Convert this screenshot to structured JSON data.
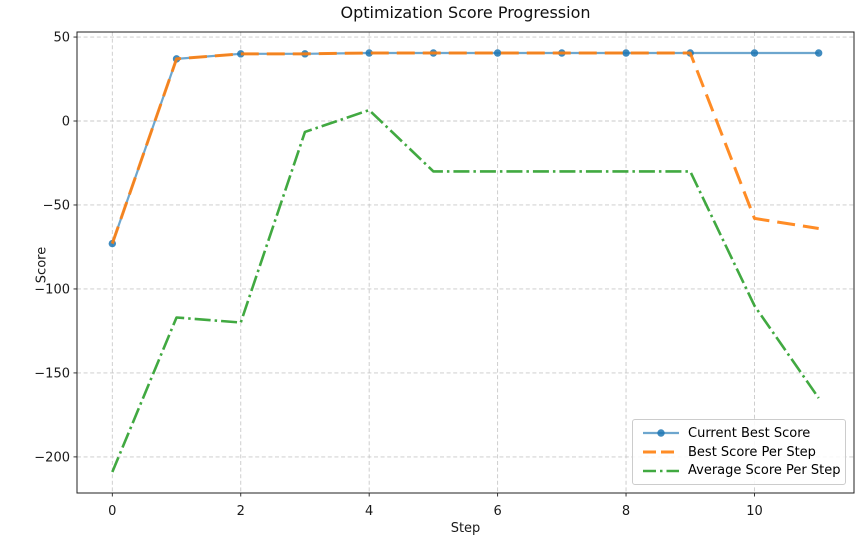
{
  "chart_data": {
    "type": "line",
    "title": "Optimization Score Progression",
    "xlabel": "Step",
    "ylabel": "Score",
    "background": "#ffffff",
    "grid": true,
    "grid_color": "#c9c9c9",
    "spine_color": "#222222",
    "text_color": "#1a1a1a",
    "legend_position": "lower right",
    "xlim": [
      -0.55,
      11.55
    ],
    "ylim": [
      -221.5,
      53
    ],
    "x_ticks": {
      "values": [
        0,
        2,
        4,
        6,
        8,
        10
      ],
      "labels": [
        "0",
        "2",
        "4",
        "6",
        "8",
        "10"
      ]
    },
    "y_ticks": {
      "values": [
        50,
        0,
        -50,
        -100,
        -150,
        -200
      ],
      "labels": [
        "50",
        "0",
        "−50",
        "−100",
        "−150",
        "−200"
      ]
    },
    "x": [
      0,
      1,
      2,
      3,
      4,
      5,
      6,
      7,
      8,
      9,
      10,
      11
    ],
    "series": [
      {
        "name": "Current Best Score",
        "color": "#1f77b4",
        "alpha": 0.65,
        "style": "solid",
        "marker": "circle",
        "marker_alpha": 0.85,
        "line_width": 2.2,
        "values": [
          -73,
          37,
          40,
          40,
          40.5,
          40.5,
          40.5,
          40.5,
          40.5,
          40.5,
          40.5,
          40.5
        ]
      },
      {
        "name": "Best Score Per Step",
        "color": "#ff7f0e",
        "alpha": 0.9,
        "style": "dashed",
        "marker": "none",
        "line_width": 3,
        "values": [
          -73,
          37,
          40,
          40,
          40.5,
          40.5,
          40.5,
          40.5,
          40.5,
          40.5,
          -58,
          -64
        ]
      },
      {
        "name": "Average Score Per Step",
        "color": "#2ca02c",
        "alpha": 0.9,
        "style": "dashdot",
        "marker": "none",
        "line_width": 2.6,
        "values": [
          -209,
          -117,
          -120,
          -6.5,
          6.5,
          -30,
          -30,
          -30,
          -30,
          -30,
          -110,
          -165
        ]
      }
    ]
  }
}
